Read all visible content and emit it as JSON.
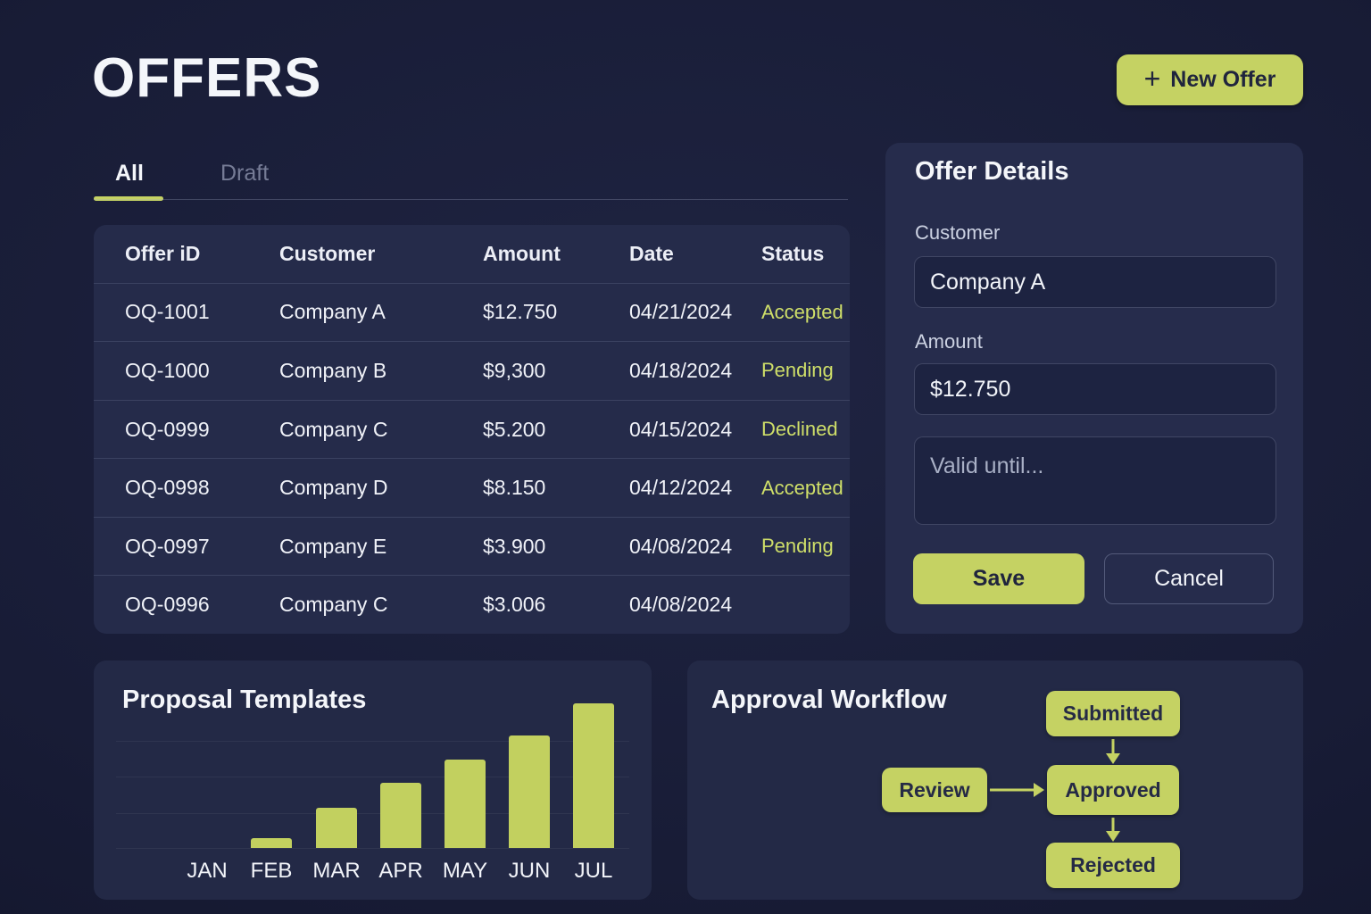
{
  "page": {
    "title": "OFFERS"
  },
  "header": {
    "new_offer_label": "New Offer",
    "plus_icon": "+"
  },
  "tabs": [
    {
      "label": "All",
      "active": true
    },
    {
      "label": "Draft",
      "active": false
    }
  ],
  "table": {
    "columns": [
      "Offer iD",
      "Customer",
      "Amount",
      "Date",
      "Status"
    ],
    "rows": [
      {
        "id": "OQ-1001",
        "customer": "Company A",
        "amount": "$12.750",
        "date": "04/21/2024",
        "status": "Accepted"
      },
      {
        "id": "OQ-1000",
        "customer": "Company B",
        "amount": "$9,300",
        "date": "04/18/2024",
        "status": "Pending"
      },
      {
        "id": "OQ-0999",
        "customer": "Company C",
        "amount": "$5.200",
        "date": "04/15/2024",
        "status": "Declined"
      },
      {
        "id": "OQ-0998",
        "customer": "Company D",
        "amount": "$8.150",
        "date": "04/12/2024",
        "status": "Accepted"
      },
      {
        "id": "OQ-0997",
        "customer": "Company E",
        "amount": "$3.900",
        "date": "04/08/2024",
        "status": "Pending"
      },
      {
        "id": "OQ-0996",
        "customer": "Company C",
        "amount": "$3.006",
        "date": "04/08/2024",
        "status": ""
      }
    ]
  },
  "offer_details": {
    "title": "Offer Details",
    "customer_label": "Customer",
    "customer_value": "Company A",
    "amount_label": "Amount",
    "amount_value": "$12.750",
    "valid_until_placeholder": "Valid until...",
    "save_label": "Save",
    "cancel_label": "Cancel"
  },
  "chart_card": {
    "title": "Proposal Templates"
  },
  "chart_data": {
    "type": "bar",
    "title": "Proposal Templates",
    "categories": [
      "JAN",
      "FEB",
      "MAR",
      "APR",
      "MAY",
      "JUN",
      "JUL"
    ],
    "values": [
      0,
      7,
      28,
      45,
      61,
      78,
      100
    ],
    "xlabel": "",
    "ylabel": "",
    "ylim": [
      0,
      100
    ],
    "grid": true,
    "legend": "none",
    "bar_color": "#c2d05f"
  },
  "workflow": {
    "title": "Approval Workflow",
    "nodes": [
      {
        "label": "Submitted"
      },
      {
        "label": "Review"
      },
      {
        "label": "Approved"
      },
      {
        "label": "Rejected"
      }
    ],
    "edges": [
      [
        "Submitted",
        "Approved"
      ],
      [
        "Review",
        "Approved"
      ],
      [
        "Approved",
        "Rejected"
      ]
    ]
  },
  "colors": {
    "accent": "#c5d263",
    "background": "#181c36",
    "panel": "#252b4a",
    "card": "#232946",
    "status_text": "#cfdf69",
    "text_primary": "#f4f6fa",
    "text_muted": "#767c96"
  }
}
